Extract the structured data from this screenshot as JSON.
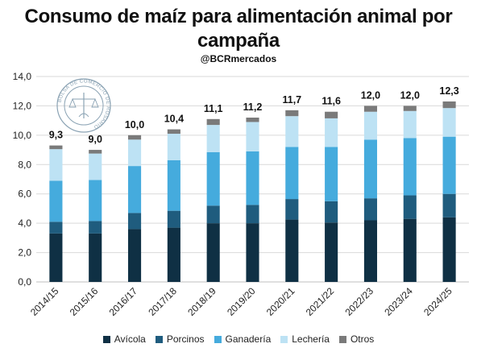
{
  "chart_data": {
    "type": "bar",
    "stacked": true,
    "title": "Consumo de maíz para alimentación animal por campaña",
    "subtitle": "@BCRmercados",
    "categories": [
      "2014/15",
      "2015/16",
      "2016/17",
      "2017/18",
      "2018/19",
      "2019/20",
      "2020/21",
      "2021/22",
      "2022/23",
      "2023/24",
      "2024/25"
    ],
    "series": [
      {
        "name": "Avícola",
        "color": "#0f3044",
        "values": [
          3.3,
          3.3,
          3.6,
          3.7,
          4.0,
          4.0,
          4.25,
          4.05,
          4.2,
          4.3,
          4.4
        ]
      },
      {
        "name": "Porcinos",
        "color": "#1f5c7e",
        "values": [
          0.8,
          0.85,
          1.1,
          1.15,
          1.2,
          1.25,
          1.4,
          1.45,
          1.5,
          1.6,
          1.6
        ]
      },
      {
        "name": "Ganadería",
        "color": "#45abdd",
        "values": [
          2.8,
          2.8,
          3.2,
          3.45,
          3.65,
          3.65,
          3.55,
          3.7,
          4.0,
          3.9,
          3.9
        ]
      },
      {
        "name": "Lechería",
        "color": "#bde2f4",
        "values": [
          2.15,
          1.8,
          1.8,
          1.8,
          1.85,
          2.0,
          2.1,
          1.95,
          1.9,
          1.85,
          1.95
        ]
      },
      {
        "name": "Otros",
        "color": "#7a7a7a",
        "values": [
          0.25,
          0.25,
          0.3,
          0.3,
          0.4,
          0.3,
          0.4,
          0.45,
          0.4,
          0.35,
          0.45
        ]
      }
    ],
    "totals_labels": [
      "9,3",
      "9,0",
      "10,0",
      "10,4",
      "11,1",
      "11,2",
      "11,7",
      "11,6",
      "12,0",
      "12,0",
      "12,3"
    ],
    "y_ticks": [
      "0,0",
      "2,0",
      "4,0",
      "6,0",
      "8,0",
      "10,0",
      "12,0",
      "14,0"
    ],
    "ylim": [
      0,
      14
    ],
    "grid": true,
    "legend_position": "bottom"
  },
  "watermark": {
    "text": "BOLSA DE COMERCIO DE ROSARIO"
  }
}
